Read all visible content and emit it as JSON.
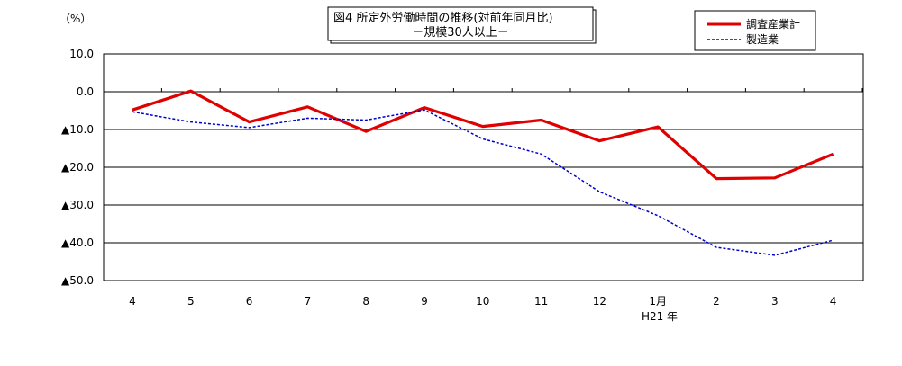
{
  "chart_data": {
    "type": "line",
    "title": "図4 所定外労働時間の推移(対前年同月比)",
    "subtitle": "－規模30人以上－",
    "ylabel": "（%）",
    "x_sublabel": "H21 年",
    "categories": [
      "4",
      "5",
      "6",
      "7",
      "8",
      "9",
      "10",
      "11",
      "12",
      "1月",
      "2",
      "3",
      "4"
    ],
    "y_ticks": [
      {
        "value": 10,
        "label": "10.0"
      },
      {
        "value": 0,
        "label": "0.0"
      },
      {
        "value": -10,
        "label": "▲10.0"
      },
      {
        "value": -20,
        "label": "▲20.0"
      },
      {
        "value": -30,
        "label": "▲30.0"
      },
      {
        "value": -40,
        "label": "▲40.0"
      },
      {
        "value": -50,
        "label": "▲50.0"
      }
    ],
    "ylim": [
      -50,
      10
    ],
    "grid": true,
    "legend_position": "top-right",
    "series": [
      {
        "name": "調査産業計",
        "color": "#e00000",
        "style": "solid",
        "values": [
          -4.8,
          0.2,
          -8.0,
          -4.0,
          -10.5,
          -4.2,
          -9.2,
          -7.5,
          -13.0,
          -9.3,
          -23.0,
          -22.8,
          -16.5
        ]
      },
      {
        "name": "製造業",
        "color": "#0000cc",
        "style": "dashed",
        "values": [
          -5.3,
          -8.0,
          -9.5,
          -7.0,
          -7.5,
          -4.8,
          -12.5,
          -16.5,
          -26.5,
          -32.8,
          -41.2,
          -43.3,
          -39.3
        ]
      }
    ]
  }
}
